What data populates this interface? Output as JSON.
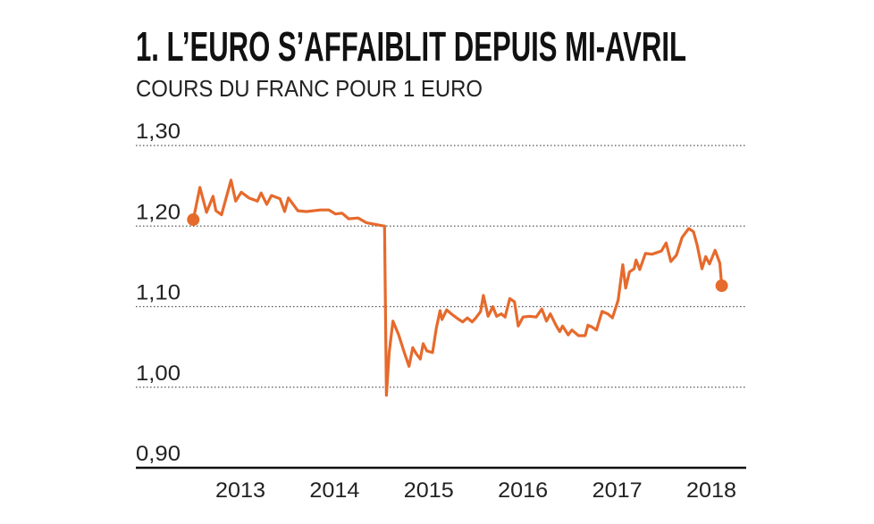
{
  "chart_data": {
    "type": "line",
    "title": "1. L’EURO S’AFFAIBLIT DEPUIS MI-AVRIL",
    "subtitle": "COURS DU FRANC POUR 1 EURO",
    "x": [
      2013.0,
      2013.07,
      2013.14,
      2013.21,
      2013.24,
      2013.3,
      2013.4,
      2013.45,
      2013.51,
      2013.59,
      2013.68,
      2013.72,
      2013.78,
      2013.83,
      2013.92,
      2013.97,
      2014.01,
      2014.11,
      2014.2,
      2014.35,
      2014.44,
      2014.51,
      2014.58,
      2014.65,
      2014.75,
      2014.84,
      2014.98,
      2015.03,
      2015.05,
      2015.08,
      2015.12,
      2015.18,
      2015.24,
      2015.29,
      2015.33,
      2015.37,
      2015.41,
      2015.44,
      2015.48,
      2015.54,
      2015.58,
      2015.62,
      2015.64,
      2015.69,
      2015.75,
      2015.82,
      2015.86,
      2015.91,
      2015.96,
      2016.0,
      2016.05,
      2016.08,
      2016.13,
      2016.18,
      2016.22,
      2016.27,
      2016.31,
      2016.36,
      2016.41,
      2016.45,
      2016.5,
      2016.57,
      2016.64,
      2016.7,
      2016.75,
      2016.79,
      2016.85,
      2016.89,
      2016.92,
      2016.98,
      2017.02,
      2017.09,
      2017.16,
      2017.19,
      2017.23,
      2017.28,
      2017.34,
      2017.4,
      2017.45,
      2017.51,
      2017.56,
      2017.59,
      2017.63,
      2017.68,
      2017.7,
      2017.74,
      2017.8,
      2017.87,
      2017.97,
      2018.02,
      2018.07,
      2018.13,
      2018.19,
      2018.26,
      2018.31,
      2018.35,
      2018.4,
      2018.44,
      2018.48,
      2018.54,
      2018.59,
      2018.61
    ],
    "series": [
      {
        "color": "#e66a2c",
        "values": [
          1.208,
          1.248,
          1.217,
          1.237,
          1.219,
          1.214,
          1.257,
          1.231,
          1.242,
          1.235,
          1.231,
          1.241,
          1.227,
          1.238,
          1.234,
          1.218,
          1.235,
          1.219,
          1.218,
          1.22,
          1.22,
          1.215,
          1.216,
          1.209,
          1.21,
          1.204,
          1.201,
          1.2,
          0.99,
          1.043,
          1.082,
          1.065,
          1.043,
          1.026,
          1.049,
          1.041,
          1.035,
          1.054,
          1.045,
          1.043,
          1.073,
          1.095,
          1.084,
          1.096,
          1.09,
          1.084,
          1.081,
          1.086,
          1.081,
          1.086,
          1.094,
          1.114,
          1.088,
          1.1,
          1.088,
          1.091,
          1.087,
          1.11,
          1.106,
          1.076,
          1.087,
          1.088,
          1.087,
          1.097,
          1.082,
          1.091,
          1.077,
          1.069,
          1.076,
          1.065,
          1.071,
          1.064,
          1.064,
          1.077,
          1.075,
          1.071,
          1.094,
          1.091,
          1.086,
          1.108,
          1.152,
          1.123,
          1.143,
          1.147,
          1.158,
          1.146,
          1.166,
          1.165,
          1.169,
          1.179,
          1.156,
          1.164,
          1.186,
          1.197,
          1.193,
          1.176,
          1.147,
          1.162,
          1.153,
          1.17,
          1.154,
          1.126
        ]
      }
    ],
    "xlim": [
      2012.39,
      2018.87
    ],
    "xticks": [
      {
        "value": 2013.5,
        "label": "2013"
      },
      {
        "value": 2014.5,
        "label": "2014"
      },
      {
        "value": 2015.5,
        "label": "2015"
      },
      {
        "value": 2016.5,
        "label": "2016"
      },
      {
        "value": 2017.5,
        "label": "2017"
      },
      {
        "value": 2018.5,
        "label": "2018"
      }
    ],
    "ylim": [
      0.9,
      1.3
    ],
    "yticks": [
      {
        "value": 0.9,
        "label": "0,90"
      },
      {
        "value": 1.0,
        "label": "1,00"
      },
      {
        "value": 1.1,
        "label": "1,10"
      },
      {
        "value": 1.2,
        "label": "1,20"
      },
      {
        "value": 1.3,
        "label": "1,30"
      }
    ],
    "grid": true
  }
}
